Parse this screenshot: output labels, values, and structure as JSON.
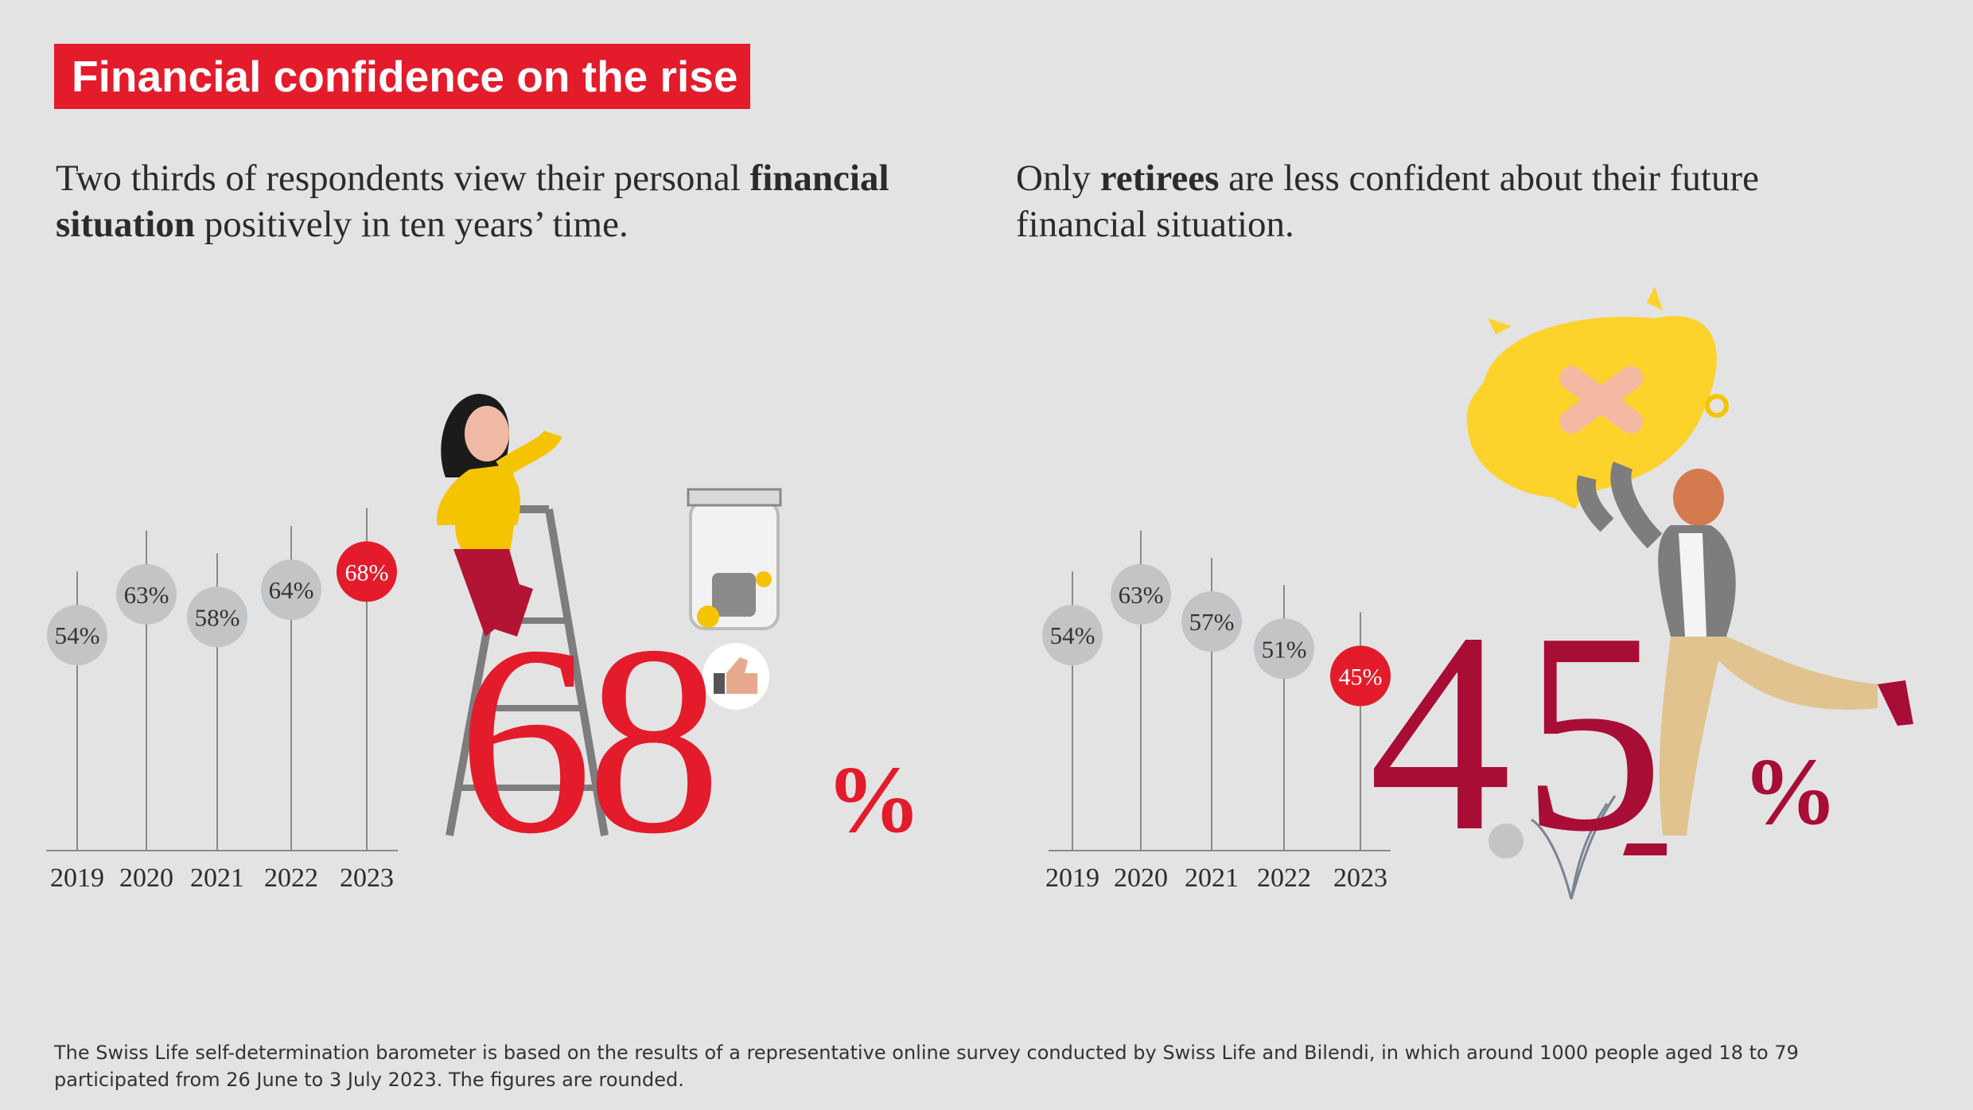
{
  "title": "Financial confidence on the rise",
  "left": {
    "subtitle_a": "Two thirds of respondents view their personal ",
    "subtitle_b": "financial situation",
    "subtitle_c": " positively in ten years’ time.",
    "big_value": "68",
    "big_unit": "%"
  },
  "right": {
    "subtitle_a": "Only ",
    "subtitle_b": "retirees",
    "subtitle_c": " are less confident about their future financial situation.",
    "big_value": "45",
    "big_unit": "%"
  },
  "footnote": "The Swiss Life self-determination barometer is based on the results of a representative online survey conducted by Swiss Life and Bilendi, in which around 1000 people aged 18 to 79 participated from 26 June to 3 July 2023. The figures are rounded.",
  "colors": {
    "accent_red": "#e31b2b",
    "dark_red": "#a80d36",
    "grey_dot": "#c2c4c6",
    "axis": "#8a8a8a"
  },
  "chart_data": [
    {
      "type": "scatter",
      "categories": [
        "2019",
        "2020",
        "2021",
        "2022",
        "2023"
      ],
      "values": [
        54,
        63,
        58,
        64,
        68
      ],
      "labels": [
        "54%",
        "63%",
        "58%",
        "64%",
        "68%"
      ],
      "highlight_index": 4,
      "highlight_color": "#e31b2b",
      "ylim": [
        0,
        70
      ]
    },
    {
      "type": "scatter",
      "categories": [
        "2019",
        "2020",
        "2021",
        "2022",
        "2023"
      ],
      "values": [
        54,
        63,
        57,
        51,
        45
      ],
      "labels": [
        "54%",
        "63%",
        "57%",
        "51%",
        "45%"
      ],
      "highlight_index": 4,
      "highlight_color": "#e31b2b",
      "ylim": [
        0,
        70
      ]
    }
  ]
}
